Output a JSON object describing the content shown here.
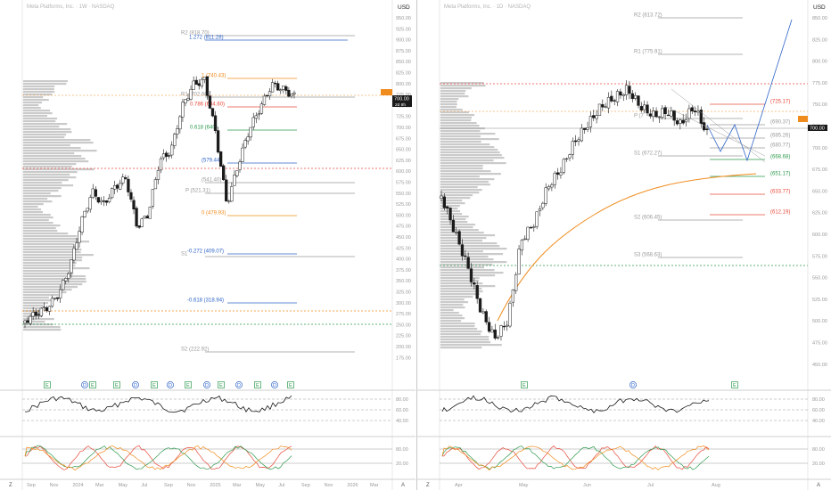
{
  "colors": {
    "up": "#ffffff",
    "down": "#1a1a1a",
    "orange": "#f08c1e",
    "red": "#e84b3c",
    "blue": "#2f64c8",
    "green": "#2e9a4e",
    "gray": "#9a9a9a",
    "volume": "#9e9e9e",
    "price_tag": "#f08c1e",
    "price_tag_dark": "#1a1a1a"
  },
  "left": {
    "title": "Meta Platforms, Inc. · 1W · NASDAQ",
    "currency": "USD",
    "price_tag": "700.00",
    "price_tag_sub": "2d 8h",
    "price_ticks": [
      "950.00",
      "925.00",
      "900.00",
      "875.00",
      "850.00",
      "825.00",
      "800.00",
      "775.00",
      "750.00",
      "725.00",
      "700.00",
      "675.00",
      "650.00",
      "625.00",
      "600.00",
      "575.00",
      "550.00",
      "525.00",
      "500.00",
      "475.00",
      "450.00",
      "425.00",
      "400.00",
      "375.00",
      "350.00",
      "325.00",
      "300.00",
      "275.00",
      "250.00",
      "225.00",
      "200.00",
      "175.00"
    ],
    "levels": [
      {
        "label": "R2 (818.70)",
        "color": "gray"
      },
      {
        "label": "1.272 (811.28)",
        "color": "blue"
      },
      {
        "label": "1 (740.43)",
        "color": "orange"
      },
      {
        "label": "R1 (702.60)",
        "color": "gray"
      },
      {
        "label": "0.786 (684.60)",
        "color": "red"
      },
      {
        "label": "0.618 (640)",
        "color": "green"
      },
      {
        "label": "(579.44)",
        "color": "blue"
      },
      {
        "label": "(541.40)",
        "color": "gray"
      },
      {
        "label": "P (521.31)",
        "color": "gray"
      },
      {
        "label": "0 (479.93)",
        "color": "orange"
      },
      {
        "label": "-0.272 (409.07)",
        "color": "blue"
      },
      {
        "label": "S1",
        "color": "gray"
      },
      {
        "label": "-0.618 (318.94)",
        "color": "blue"
      },
      {
        "label": "S2 (222.92)",
        "color": "gray"
      }
    ],
    "events": [
      "E",
      "D",
      "E",
      "E",
      "D",
      "E",
      "D",
      "E",
      "D",
      "E",
      "D",
      "E",
      "D",
      "E"
    ],
    "osc1_ticks": [
      "80.00",
      "60.00",
      "40.00"
    ],
    "osc2_ticks": [
      "80.00",
      "20.00"
    ],
    "time_labels": [
      "Sep",
      "Nov",
      "2024",
      "Mar",
      "May",
      "Jul",
      "Sep",
      "Nov",
      "2025",
      "Mar",
      "May",
      "Jul",
      "Sep",
      "Nov",
      "2026",
      "Mar"
    ],
    "zoom_label": "Z",
    "auto_label": "A"
  },
  "right": {
    "title": "Meta Platforms, Inc. · 1D · NASDAQ",
    "currency": "USD",
    "price_tag": "700.00",
    "price_tag_sub": "706.55",
    "price_ticks": [
      "850.00",
      "825.00",
      "800.00",
      "775.00",
      "750.00",
      "725.00",
      "700.00",
      "675.00",
      "650.00",
      "625.00",
      "600.00",
      "575.00",
      "550.00",
      "525.00",
      "500.00",
      "475.00",
      "450.00"
    ],
    "levels": [
      {
        "label": "R2 (813.72)",
        "color": "gray"
      },
      {
        "label": "R1 (775.91)",
        "color": "gray"
      },
      {
        "label": "(725.17)",
        "color": "red"
      },
      {
        "label": "P (7",
        "color": "gray"
      },
      {
        "label": "(690.37)",
        "color": "gray"
      },
      {
        "label": "(685.26)",
        "color": "gray"
      },
      {
        "label": "(680.77)",
        "color": "gray"
      },
      {
        "label": "S1 (672.27)",
        "color": "gray"
      },
      {
        "label": "(668.68)",
        "color": "green"
      },
      {
        "label": "(651.17)",
        "color": "green"
      },
      {
        "label": "(633.77)",
        "color": "red"
      },
      {
        "label": "(612.19)",
        "color": "red"
      },
      {
        "label": "S2 (606.45)",
        "color": "gray"
      },
      {
        "label": "S3 (568.63)",
        "color": "gray"
      }
    ],
    "events": [
      "E",
      "D",
      "E"
    ],
    "osc1_ticks": [
      "80.00",
      "60.00",
      "40.00"
    ],
    "osc2_ticks": [
      "80.00",
      "20.00"
    ],
    "time_labels": [
      "Apr",
      "May",
      "Jun",
      "Jul",
      "Aug"
    ],
    "zoom_label": "Z",
    "auto_label": "A"
  }
}
